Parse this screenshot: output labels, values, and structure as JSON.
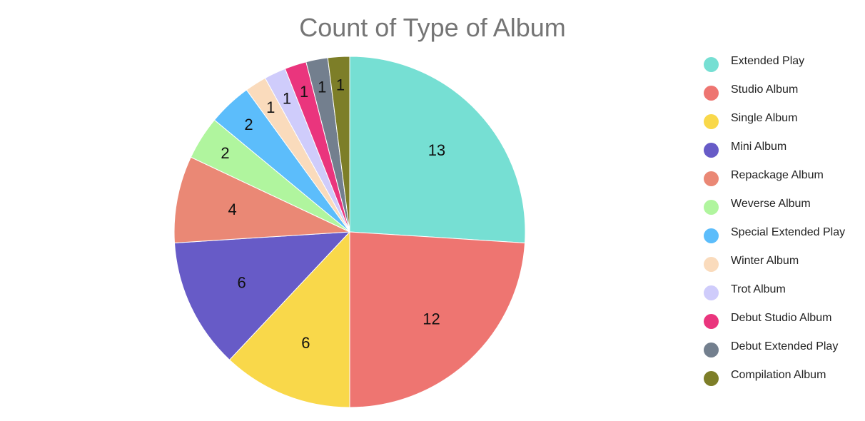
{
  "chart_data": {
    "type": "pie",
    "title": "Count of Type of Album",
    "legend_position": "right",
    "slices": [
      {
        "label": "Extended Play",
        "value": 13,
        "color": "#76DFD3"
      },
      {
        "label": "Studio Album",
        "value": 12,
        "color": "#EE7571"
      },
      {
        "label": "Single Album",
        "value": 6,
        "color": "#F9D84A"
      },
      {
        "label": "Mini Album",
        "value": 6,
        "color": "#675BC7"
      },
      {
        "label": "Repackage Album",
        "value": 4,
        "color": "#EA8875"
      },
      {
        "label": "Weverse Album",
        "value": 2,
        "color": "#B0F59E"
      },
      {
        "label": "Special Extended Play",
        "value": 2,
        "color": "#5CBDFB"
      },
      {
        "label": "Winter Album",
        "value": 1,
        "color": "#FADBBC"
      },
      {
        "label": "Trot Album",
        "value": 1,
        "color": "#CFCCFB"
      },
      {
        "label": "Debut Studio Album",
        "value": 1,
        "color": "#EA357D"
      },
      {
        "label": "Debut Extended Play",
        "value": 1,
        "color": "#737F8E"
      },
      {
        "label": "Compilation Album",
        "value": 1,
        "color": "#7D7E28"
      }
    ]
  }
}
